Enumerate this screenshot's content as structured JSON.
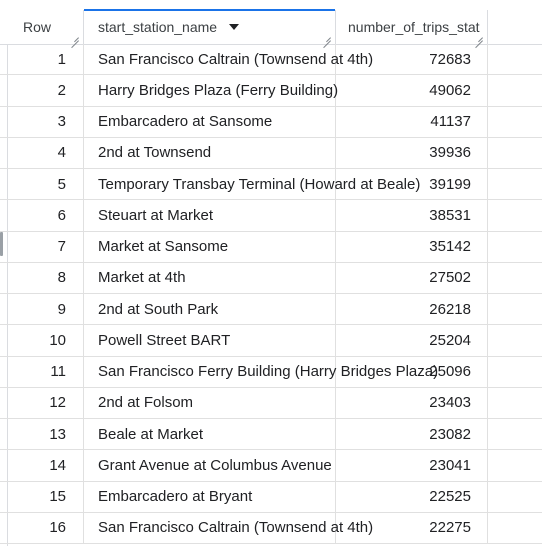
{
  "table": {
    "columns": [
      {
        "key": "row",
        "label": "Row"
      },
      {
        "key": "start_station_name",
        "label": "start_station_name"
      },
      {
        "key": "number_of_trips",
        "label": "number_of_trips_stat"
      }
    ],
    "sorted_column": "start_station_name",
    "rows": [
      {
        "row": "1",
        "name": "San Francisco Caltrain (Townsend at 4th)",
        "trips": "72683"
      },
      {
        "row": "2",
        "name": "Harry Bridges Plaza (Ferry Building)",
        "trips": "49062"
      },
      {
        "row": "3",
        "name": "Embarcadero at Sansome",
        "trips": "41137"
      },
      {
        "row": "4",
        "name": "2nd at Townsend",
        "trips": "39936"
      },
      {
        "row": "5",
        "name": "Temporary Transbay Terminal (Howard at Beale)",
        "trips": "39199"
      },
      {
        "row": "6",
        "name": "Steuart at Market",
        "trips": "38531"
      },
      {
        "row": "7",
        "name": "Market at Sansome",
        "trips": "35142"
      },
      {
        "row": "8",
        "name": "Market at 4th",
        "trips": "27502"
      },
      {
        "row": "9",
        "name": "2nd at South Park",
        "trips": "26218"
      },
      {
        "row": "10",
        "name": "Powell Street BART",
        "trips": "25204"
      },
      {
        "row": "11",
        "name": "San Francisco Ferry Building (Harry Bridges Plaza)",
        "trips": "25096"
      },
      {
        "row": "12",
        "name": "2nd at Folsom",
        "trips": "23403"
      },
      {
        "row": "13",
        "name": "Beale at Market",
        "trips": "23082"
      },
      {
        "row": "14",
        "name": "Grant Avenue at Columbus Avenue",
        "trips": "23041"
      },
      {
        "row": "15",
        "name": "Embarcadero at Bryant",
        "trips": "22525"
      },
      {
        "row": "16",
        "name": "San Francisco Caltrain (Townsend at 4th)",
        "trips": "22275"
      }
    ]
  },
  "icons": {
    "sort": "sort-descending-icon",
    "resize": "column-resize-icon"
  },
  "colors": {
    "accent": "#1a73e8",
    "grid_line": "#e0e0e0",
    "text": "#202124"
  }
}
